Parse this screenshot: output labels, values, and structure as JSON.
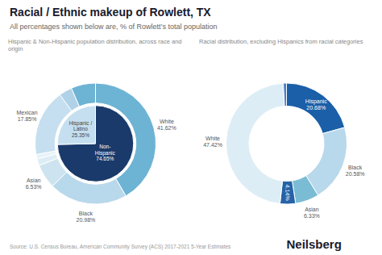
{
  "title": "Racial / Ethnic makeup of Rowlett, TX",
  "subtitle": "All percentages shown below are, % of Rowlett’s total population",
  "annotations": [
    "Source: U.S. Census Bureau, American Community Survey (ACS) 2017-2021 5-Year Estimates",
    "Neilsberg"
  ],
  "chart_data": [
    {
      "type": "donut",
      "title": "Hispanic & Non-Hispanic population distribution, across race and origin",
      "data_labels": true,
      "series": [
        {
          "type": "donut",
          "categories": [
            "White",
            "Black",
            "Asian",
            null,
            null,
            "Mexican",
            null,
            null
          ],
          "values": [
            41.62,
            20.98,
            6.53,
            1.8,
            1.2,
            17.85,
            3.5,
            6.52
          ],
          "value_labels": [
            "41.62%",
            "20.98%",
            "6.53%",
            null,
            null,
            "17.85%",
            null,
            null
          ],
          "colors": [
            "#6db3d4",
            "#b8d8eb",
            "#cde4f0",
            "#ddedf5",
            "#e8f3f8",
            "#c5dff0",
            "#b0d2e8",
            "#6db3d4"
          ]
        },
        {
          "type": "pie",
          "categories": [
            "Non-\nHispanic",
            "Hispanic /\nLatino"
          ],
          "values": [
            74.65,
            25.35
          ],
          "value_labels": [
            "74.65%",
            "25.35%"
          ],
          "colors": [
            "#1a3a6b",
            "#c5dff0"
          ]
        }
      ]
    },
    {
      "type": "donut",
      "title": "Racial distribution, excluding Hispanics from racial categories",
      "data_labels": true,
      "series": [
        {
          "type": "donut",
          "categories": [
            "Hispanic",
            "Black",
            "Asian",
            null,
            "White",
            null
          ],
          "values": [
            20.68,
            20.58,
            6.33,
            4.14,
            47.42,
            0.85
          ],
          "value_labels": [
            "20.68%",
            "20.58%",
            "6.33%",
            "4.14%",
            "47.42%",
            null
          ],
          "colors": [
            "#1a5fa8",
            "#b8d8eb",
            "#7bbcd5",
            "#2563a8",
            "#ddedf5",
            "#4a7fc1"
          ]
        }
      ]
    }
  ]
}
